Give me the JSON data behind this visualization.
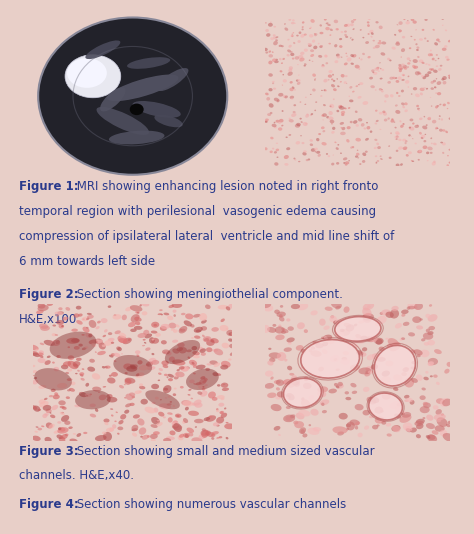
{
  "bg_top_panel": "#f0d0c8",
  "bg_bottom_panel": "#f0d0c8",
  "bg_separator": "#ffffff",
  "bg_outer": "#e8cfc8",
  "text_color": "#2a3a8c",
  "fig1_bold": "Figure 1:",
  "fig1_text": " MRI showing enhancing lesion noted in right fronto\ntemporal region with perilesional  vasogenic edema causing\ncompression of ipsilateral lateral  ventricle and mid line shift of\n6 mm towards left side",
  "fig2_bold": "Figure 2:",
  "fig2_text": " Section showing meningiothelial component.\nH&E,x100",
  "fig3_bold": "Figure 3:",
  "fig3_text": " Section showing small and medium sized vascular\nchannels. H&E,x40.",
  "fig4_bold": "Figure 4:",
  "fig4_text": " Section showing numerous vascular channels",
  "fontsize": 8.5,
  "img1_bg": "#111118",
  "img2_bg": "#e07870",
  "img3_bg": "#cc6860",
  "img4_bg": "#d88880"
}
